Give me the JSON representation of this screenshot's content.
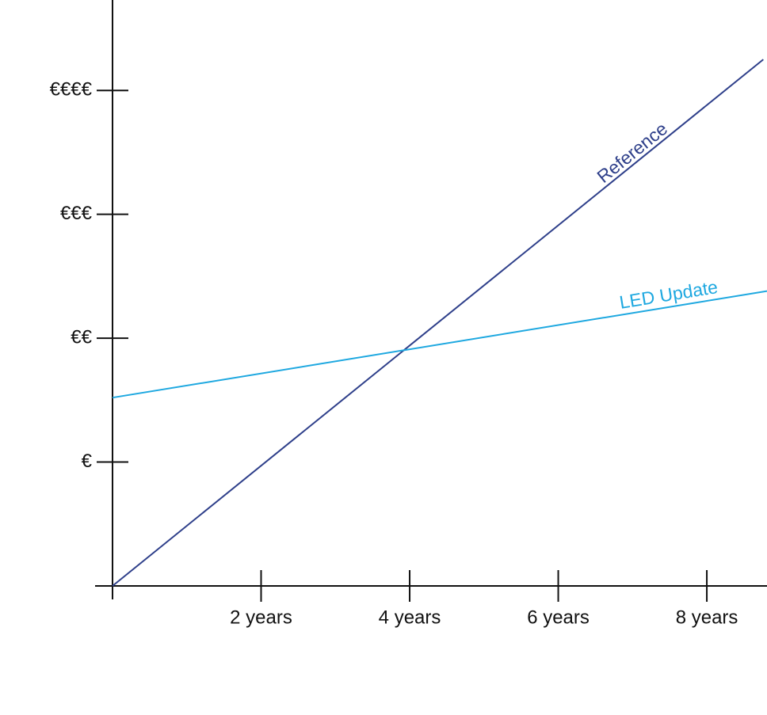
{
  "chart_data": {
    "type": "line",
    "xlim": [
      0,
      8.81
    ],
    "ylim": [
      0,
      4.73
    ],
    "xticks": [
      {
        "value": 2,
        "label": "2 years"
      },
      {
        "value": 4,
        "label": "4 years"
      },
      {
        "value": 6,
        "label": "6 years"
      },
      {
        "value": 8,
        "label": "8 years"
      }
    ],
    "yticks": [
      {
        "value": 1,
        "label": "€"
      },
      {
        "value": 2,
        "label": "€€"
      },
      {
        "value": 3,
        "label": "€€€"
      },
      {
        "value": 4,
        "label": "€€€€"
      }
    ],
    "series": [
      {
        "name": "Reference",
        "color": "#2e3f8a",
        "x": [
          0,
          8.76
        ],
        "values": [
          0,
          4.25
        ]
      },
      {
        "name": "LED Update",
        "color": "#1ea8e0",
        "x": [
          0,
          8.81
        ],
        "values": [
          1.52,
          2.38
        ]
      }
    ]
  }
}
